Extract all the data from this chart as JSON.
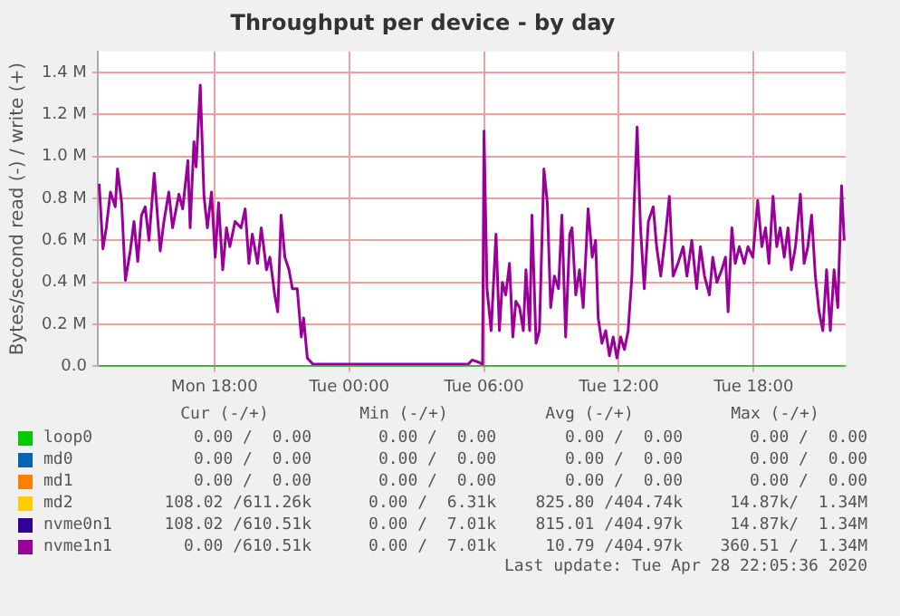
{
  "chart_data": {
    "type": "line",
    "title": "Throughput per device - by day",
    "ylabel": "Bytes/second read (-) / write (+)",
    "xlim": [
      "2020-04-27T12:48",
      "2020-04-28T22:06"
    ],
    "xticks": [
      {
        "value": "2020-04-27T18:00",
        "label": "Mon 18:00"
      },
      {
        "value": "2020-04-28T00:00",
        "label": "Tue 00:00"
      },
      {
        "value": "2020-04-28T06:00",
        "label": "Tue 06:00"
      },
      {
        "value": "2020-04-28T12:00",
        "label": "Tue 12:00"
      },
      {
        "value": "2020-04-28T18:00",
        "label": "Tue 18:00"
      }
    ],
    "ylim": [
      0,
      1.5
    ],
    "yticks": [
      {
        "value": 0,
        "label": "0.0"
      },
      {
        "value": 0.2,
        "label": "0.2 M"
      },
      {
        "value": 0.4,
        "label": "0.4 M"
      },
      {
        "value": 0.6,
        "label": "0.6 M"
      },
      {
        "value": 0.8,
        "label": "0.8 M"
      },
      {
        "value": 1.0,
        "label": "1.0 M"
      },
      {
        "value": 1.2,
        "label": "1.2 M"
      },
      {
        "value": 1.4,
        "label": "1.4 M"
      }
    ],
    "grid": true,
    "legend": "bottom",
    "marker": "none",
    "line_style": "solid",
    "series": [
      {
        "name": "loop0",
        "color": "#00cc00",
        "x": [
          "2020-04-27T12:52",
          "2020-04-28T22:02"
        ],
        "values": [
          0,
          0
        ]
      },
      {
        "name": "md0",
        "color": "#0066b3"
      },
      {
        "name": "md1",
        "color": "#ff8000"
      },
      {
        "name": "md2",
        "color": "#ffcc00"
      },
      {
        "name": "nvme0n1",
        "color": "#330099"
      },
      {
        "name": "nvme1n1",
        "color": "#990099",
        "x": [
          "2020-04-27T12:52",
          "2020-04-27T13:02",
          "2020-04-27T13:11",
          "2020-04-27T13:22",
          "2020-04-27T13:35",
          "2020-04-27T13:41",
          "2020-04-27T13:52",
          "2020-04-27T14:02",
          "2020-04-27T14:15",
          "2020-04-27T14:25",
          "2020-04-27T14:35",
          "2020-04-27T14:45",
          "2020-04-27T14:55",
          "2020-04-27T15:05",
          "2020-04-27T15:19",
          "2020-04-27T15:35",
          "2020-04-27T15:45",
          "2020-04-27T15:58",
          "2020-04-27T16:08",
          "2020-04-27T16:25",
          "2020-04-27T16:35",
          "2020-04-27T16:49",
          "2020-04-27T16:55",
          "2020-04-27T17:05",
          "2020-04-27T17:11",
          "2020-04-27T17:22",
          "2020-04-27T17:32",
          "2020-04-27T17:41",
          "2020-04-27T17:52",
          "2020-04-27T18:02",
          "2020-04-27T18:11",
          "2020-04-27T18:22",
          "2020-04-27T18:32",
          "2020-04-27T18:41",
          "2020-04-27T18:55",
          "2020-04-27T19:11",
          "2020-04-27T19:22",
          "2020-04-27T19:32",
          "2020-04-27T19:41",
          "2020-04-27T19:55",
          "2020-04-27T20:05",
          "2020-04-27T20:19",
          "2020-04-27T20:28",
          "2020-04-27T20:41",
          "2020-04-27T20:49",
          "2020-04-27T20:58",
          "2020-04-27T21:08",
          "2020-04-27T21:19",
          "2020-04-27T21:28",
          "2020-04-27T21:41",
          "2020-04-27T21:52",
          "2020-04-27T21:58",
          "2020-04-27T22:08",
          "2020-04-27T22:23",
          "2020-04-27T22:49",
          "2020-04-28T00:00",
          "2020-04-28T05:18",
          "2020-04-28T05:28",
          "2020-04-28T05:45",
          "2020-04-28T05:56",
          "2020-04-28T06:00",
          "2020-04-28T06:08",
          "2020-04-28T06:19",
          "2020-04-28T06:32",
          "2020-04-28T06:41",
          "2020-04-28T06:49",
          "2020-04-28T06:58",
          "2020-04-28T07:08",
          "2020-04-28T07:17",
          "2020-04-28T07:25",
          "2020-04-28T07:35",
          "2020-04-28T07:45",
          "2020-04-28T07:52",
          "2020-04-28T08:02",
          "2020-04-28T08:08",
          "2020-04-28T08:19",
          "2020-04-28T08:28",
          "2020-04-28T08:40",
          "2020-04-28T08:49",
          "2020-04-28T08:58",
          "2020-04-28T09:08",
          "2020-04-28T09:19",
          "2020-04-28T09:28",
          "2020-04-28T09:38",
          "2020-04-28T09:49",
          "2020-04-28T09:55",
          "2020-04-28T10:05",
          "2020-04-28T10:15",
          "2020-04-28T10:25",
          "2020-04-28T10:38",
          "2020-04-28T10:49",
          "2020-04-28T10:58",
          "2020-04-28T11:05",
          "2020-04-28T11:15",
          "2020-04-28T11:25",
          "2020-04-28T11:35",
          "2020-04-28T11:45",
          "2020-04-28T11:55",
          "2020-04-28T12:05",
          "2020-04-28T12:15",
          "2020-04-28T12:25",
          "2020-04-28T12:35",
          "2020-04-28T12:41",
          "2020-04-28T12:49",
          "2020-04-28T12:58",
          "2020-04-28T13:08",
          "2020-04-28T13:19",
          "2020-04-28T13:32",
          "2020-04-28T13:41",
          "2020-04-28T13:52",
          "2020-04-28T14:05",
          "2020-04-28T14:15",
          "2020-04-28T14:25",
          "2020-04-28T14:38",
          "2020-04-28T14:52",
          "2020-04-28T15:02",
          "2020-04-28T15:15",
          "2020-04-28T15:28",
          "2020-04-28T15:38",
          "2020-04-28T15:49",
          "2020-04-28T16:02",
          "2020-04-28T16:11",
          "2020-04-28T16:22",
          "2020-04-28T16:35",
          "2020-04-28T16:45",
          "2020-04-28T16:52",
          "2020-04-28T17:02",
          "2020-04-28T17:11",
          "2020-04-28T17:22",
          "2020-04-28T17:35",
          "2020-04-28T17:45",
          "2020-04-28T17:58",
          "2020-04-28T18:11",
          "2020-04-28T18:22",
          "2020-04-28T18:32",
          "2020-04-28T18:41",
          "2020-04-28T18:52",
          "2020-04-28T19:02",
          "2020-04-28T19:11",
          "2020-04-28T19:22",
          "2020-04-28T19:32",
          "2020-04-28T19:41",
          "2020-04-28T19:52",
          "2020-04-28T20:05",
          "2020-04-28T20:15",
          "2020-04-28T20:25",
          "2020-04-28T20:35",
          "2020-04-28T20:45",
          "2020-04-28T20:55",
          "2020-04-28T21:05",
          "2020-04-28T21:15",
          "2020-04-28T21:25",
          "2020-04-28T21:35",
          "2020-04-28T21:45",
          "2020-04-28T21:55",
          "2020-04-28T22:02"
        ],
        "values": [
          0.87,
          0.56,
          0.66,
          0.83,
          0.76,
          0.94,
          0.78,
          0.41,
          0.55,
          0.69,
          0.5,
          0.72,
          0.76,
          0.6,
          0.92,
          0.55,
          0.69,
          0.83,
          0.66,
          0.82,
          0.75,
          0.98,
          0.66,
          1.07,
          0.95,
          1.34,
          0.81,
          0.66,
          0.83,
          0.52,
          0.78,
          0.46,
          0.66,
          0.57,
          0.69,
          0.66,
          0.75,
          0.49,
          0.63,
          0.49,
          0.66,
          0.46,
          0.52,
          0.34,
          0.26,
          0.72,
          0.52,
          0.46,
          0.37,
          0.37,
          0.14,
          0.23,
          0.04,
          0.01,
          0.01,
          0.01,
          0.01,
          0.03,
          0.02,
          0.01,
          1.12,
          0.37,
          0.17,
          0.63,
          0.17,
          0.4,
          0.34,
          0.49,
          0.14,
          0.31,
          0.28,
          0.17,
          0.46,
          0.17,
          0.72,
          0.11,
          0.17,
          0.94,
          0.78,
          0.28,
          0.43,
          0.37,
          0.72,
          0.14,
          0.63,
          0.66,
          0.34,
          0.46,
          0.28,
          0.75,
          0.52,
          0.6,
          0.23,
          0.11,
          0.17,
          0.05,
          0.14,
          0.04,
          0.14,
          0.08,
          0.17,
          0.43,
          0.78,
          1.14,
          0.66,
          0.37,
          0.69,
          0.76,
          0.57,
          0.43,
          0.63,
          0.81,
          0.43,
          0.49,
          0.57,
          0.43,
          0.6,
          0.37,
          0.57,
          0.43,
          0.34,
          0.52,
          0.4,
          0.46,
          0.52,
          0.26,
          0.66,
          0.49,
          0.57,
          0.49,
          0.57,
          0.52,
          0.79,
          0.57,
          0.66,
          0.49,
          0.81,
          0.57,
          0.66,
          0.52,
          0.66,
          0.46,
          0.57,
          0.82,
          0.49,
          0.57,
          0.72,
          0.43,
          0.26,
          0.17,
          0.46,
          0.17,
          0.46,
          0.28,
          0.86,
          0.6
        ]
      }
    ],
    "annotations": [
      "Cur (-/+)",
      "Min (-/+)",
      "Avg (-/+)",
      "Max (-/+)",
      "0.00 /  0.00",
      "0.00 /  0.00",
      "0.00 /  0.00",
      "0.00 /  0.00",
      "0.00 /  0.00",
      "0.00 /  0.00",
      "0.00 /  0.00",
      "0.00 /  0.00",
      "0.00 /  0.00",
      "0.00 /  0.00",
      "0.00 /  0.00",
      "0.00 /  0.00",
      "108.02 /611.26k",
      "0.00 /  6.31k",
      "825.80 /404.74k",
      "14.87k/  1.34M",
      "108.02 /610.51k",
      "0.00 /  7.01k",
      "815.01 /404.97k",
      "14.87k/  1.34M",
      "0.00 /610.51k",
      "0.00 /  7.01k",
      "10.79 /404.97k",
      "360.51 /  1.34M",
      "Last update: Tue Apr 28 22:05:36 2020"
    ]
  }
}
